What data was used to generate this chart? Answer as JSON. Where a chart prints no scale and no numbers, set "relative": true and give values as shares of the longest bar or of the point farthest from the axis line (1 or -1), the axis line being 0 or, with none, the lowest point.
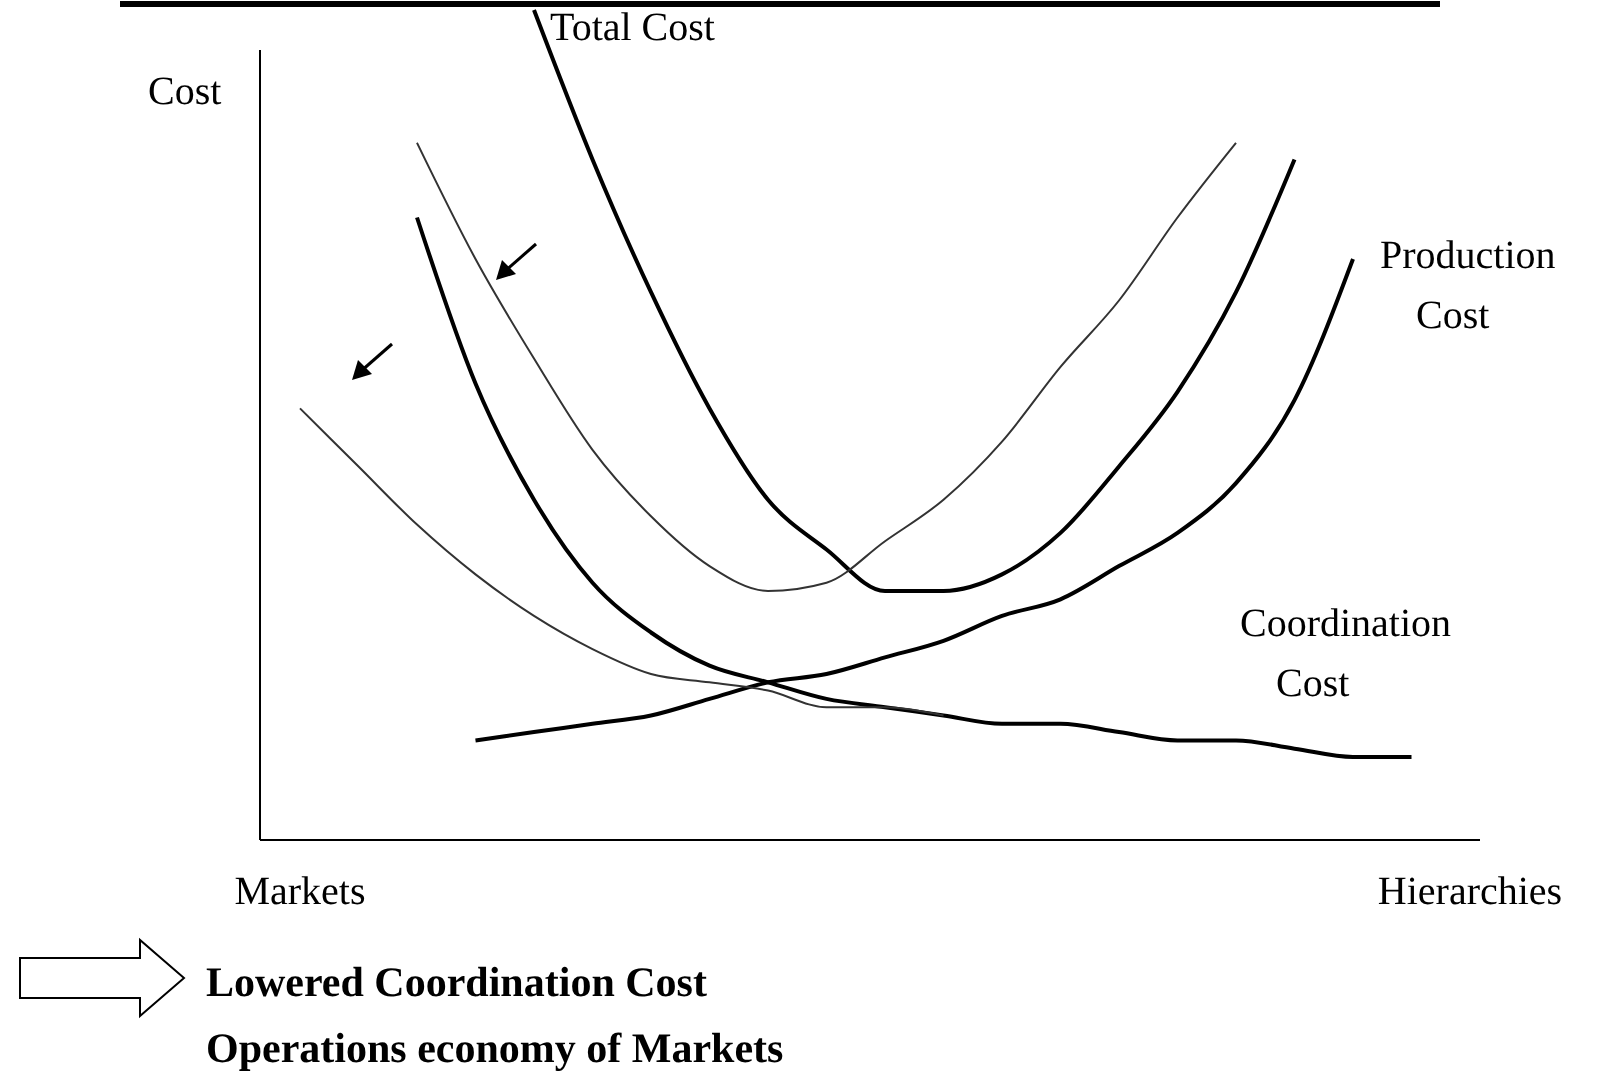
{
  "chart_data": {
    "type": "line",
    "relative": true,
    "ylabel": "Cost",
    "categories": [
      "Markets",
      null,
      null,
      null,
      null,
      null,
      null,
      null,
      null,
      null,
      null,
      null,
      null,
      null,
      null,
      null,
      null,
      null,
      null,
      null,
      "Hierarchies"
    ],
    "series": [
      {
        "name": "Total Cost",
        "color": "#000000",
        "values": [
          null,
          null,
          null,
          null,
          1.0,
          0.82,
          0.66,
          0.52,
          0.41,
          0.35,
          0.3,
          0.3,
          0.32,
          0.37,
          0.45,
          0.54,
          0.66,
          0.82,
          null,
          null,
          null
        ]
      },
      {
        "color": "#333333",
        "values": [
          null,
          null,
          0.84,
          0.7,
          0.58,
          0.47,
          0.39,
          0.33,
          0.3,
          0.31,
          0.36,
          0.41,
          0.48,
          0.57,
          0.65,
          0.75,
          0.84,
          null,
          null,
          null,
          null
        ]
      },
      {
        "name": "Production Cost",
        "color": "#000000",
        "values": [
          null,
          null,
          null,
          0.12,
          0.13,
          0.14,
          0.15,
          0.17,
          0.19,
          0.2,
          0.22,
          0.24,
          0.27,
          0.29,
          0.33,
          0.37,
          0.43,
          0.53,
          0.7,
          null,
          null
        ]
      },
      {
        "name": "Coordination Cost",
        "color": "#000000",
        "values": [
          null,
          null,
          0.75,
          0.55,
          0.41,
          0.31,
          0.25,
          0.21,
          0.19,
          0.17,
          0.16,
          0.15,
          0.14,
          0.14,
          0.13,
          0.12,
          0.12,
          0.11,
          0.1,
          0.1,
          null
        ]
      },
      {
        "color": "#333333",
        "values": [
          0.52,
          0.45,
          0.38,
          0.32,
          0.27,
          0.23,
          0.2,
          0.19,
          0.18,
          0.16,
          0.16,
          0.15,
          null,
          null,
          null,
          null,
          null,
          null,
          null,
          null,
          null
        ]
      }
    ],
    "annotations": [
      "Lowered Coordination Cost",
      "Operations economy of Markets"
    ]
  }
}
